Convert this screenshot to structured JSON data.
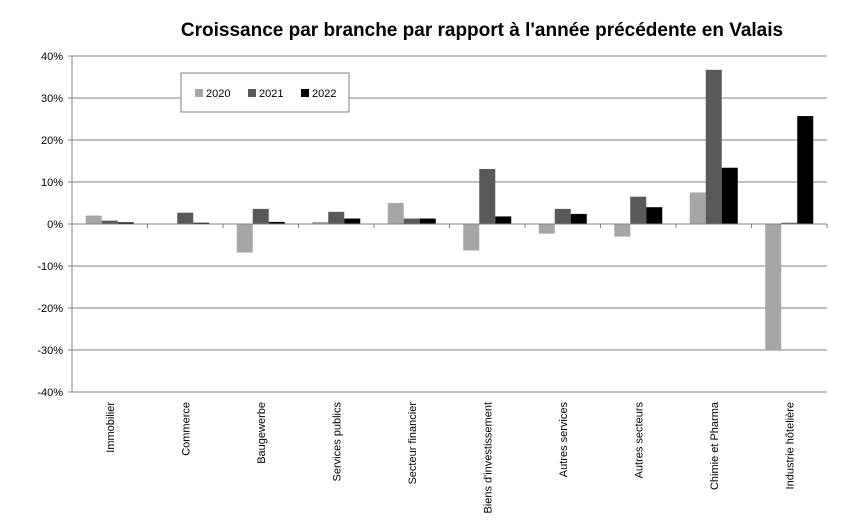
{
  "chart_data": {
    "type": "bar",
    "title": "Croissance par branche par rapport à l'année précédente en Valais",
    "xlabel": "",
    "ylabel": "",
    "categories": [
      "Immobilier",
      "Commerce",
      "Baugewerbe",
      "Services publics",
      "Secteur financier",
      "Biens d'investissement",
      "Autres services",
      "Autres secteurs",
      "Chimie et Pharma",
      "Industrie hôtelière"
    ],
    "series": [
      {
        "name": "2020",
        "color": "#a6a6a6",
        "values": [
          2.0,
          0.0,
          -6.8,
          0.5,
          5.0,
          -6.3,
          -2.3,
          -3.0,
          7.5,
          -30.0
        ]
      },
      {
        "name": "2021",
        "color": "#595959",
        "values": [
          0.8,
          2.7,
          3.6,
          2.9,
          1.3,
          13.1,
          3.6,
          6.5,
          36.7,
          0.3
        ]
      },
      {
        "name": "2022",
        "color": "#000000",
        "values": [
          0.4,
          0.3,
          0.5,
          1.3,
          1.3,
          1.8,
          2.4,
          4.0,
          13.4,
          25.7
        ]
      }
    ],
    "ylim": [
      -40,
      40
    ],
    "yticks": [
      40,
      30,
      20,
      10,
      0,
      -10,
      -20,
      -30,
      -40
    ],
    "ytick_labels": [
      "40%",
      "30%",
      "20%",
      "10%",
      "0%",
      "-10%",
      "-20%",
      "-30%",
      "-40%"
    ],
    "grid": true,
    "legend_position": "top-left"
  }
}
